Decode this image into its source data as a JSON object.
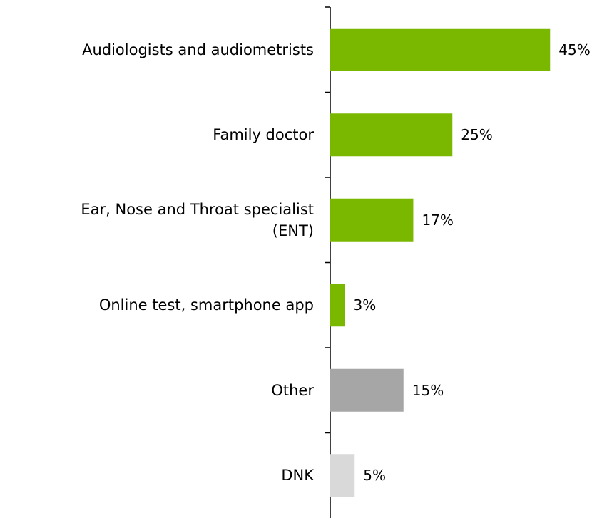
{
  "chart_data": {
    "type": "bar",
    "orientation": "horizontal",
    "categories": [
      "Audiologists and audiometrists",
      "Family doctor",
      "Ear, Nose and Throat specialist\n(ENT)",
      "Online test, smartphone app",
      "Other",
      "DNK"
    ],
    "values": [
      45,
      25,
      17,
      3,
      15,
      5
    ],
    "value_labels": [
      "45%",
      "25%",
      "17%",
      "3%",
      "15%",
      "5%"
    ],
    "colors": [
      "#7ab800",
      "#7ab800",
      "#7ab800",
      "#7ab800",
      "#a6a6a6",
      "#d9d9d9"
    ]
  }
}
